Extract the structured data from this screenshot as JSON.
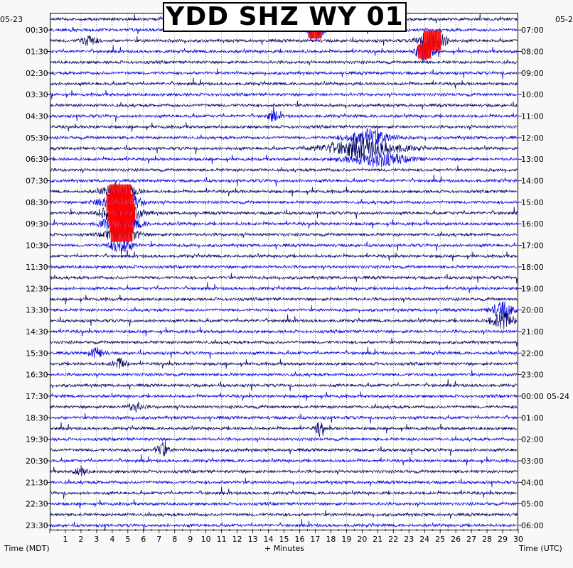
{
  "title": "YDD SHZ WY 01",
  "dates": {
    "start_local": "05-23",
    "start_utc": "05-2",
    "rollover_utc": "05-24"
  },
  "axis_labels": {
    "left": "Time (MDT)",
    "bottom": "+ Minutes",
    "right": "Time (UTC)"
  },
  "colors": {
    "trace_dark": "#000060",
    "trace_blue": "#0000dd",
    "clip": "#ff0000",
    "background": "#ffffff"
  },
  "chart_data": {
    "type": "line",
    "title": "YDD SHZ WY 01",
    "xlabel": "+ Minutes",
    "ylabel_left": "Time (MDT)",
    "ylabel_right": "Time (UTC)",
    "xlim": [
      0,
      30
    ],
    "x_ticks": [
      "1",
      "2",
      "3",
      "4",
      "5",
      "6",
      "7",
      "8",
      "9",
      "10",
      "11",
      "12",
      "13",
      "14",
      "15",
      "16",
      "17",
      "18",
      "19",
      "20",
      "21",
      "22",
      "23",
      "24",
      "25",
      "26",
      "27",
      "28",
      "29",
      "30"
    ],
    "rows_count": 48,
    "left_labels": [
      "00:30",
      "01:30",
      "02:30",
      "03:30",
      "04:30",
      "05:30",
      "06:30",
      "07:30",
      "08:30",
      "09:30",
      "10:30",
      "11:30",
      "12:30",
      "13:30",
      "14:30",
      "15:30",
      "16:30",
      "17:30",
      "18:30",
      "19:30",
      "20:30",
      "21:30",
      "22:30",
      "23:30"
    ],
    "right_labels": [
      "07:00",
      "08:00",
      "09:00",
      "10:00",
      "11:00",
      "12:00",
      "13:00",
      "14:00",
      "15:00",
      "16:00",
      "17:00",
      "18:00",
      "19:00",
      "20:00",
      "21:00",
      "22:00",
      "23:00",
      "00:00",
      "01:00",
      "02:00",
      "03:00",
      "04:00",
      "05:00",
      "06:00"
    ],
    "events": [
      {
        "row": 1,
        "minute": 17.0,
        "width": 1.2,
        "amp": 3.0,
        "clip": true
      },
      {
        "row": 2,
        "minute": 2.5,
        "width": 1.0,
        "amp": 1.3
      },
      {
        "row": 2,
        "minute": 24.5,
        "width": 1.6,
        "amp": 3.5,
        "clip": true
      },
      {
        "row": 3,
        "minute": 24.0,
        "width": 1.2,
        "amp": 2.5,
        "clip": true
      },
      {
        "row": 9,
        "minute": 14.3,
        "width": 0.8,
        "amp": 1.2
      },
      {
        "row": 11,
        "minute": 20.5,
        "width": 3.0,
        "amp": 1.8
      },
      {
        "row": 12,
        "minute": 20.0,
        "width": 5.0,
        "amp": 2.2
      },
      {
        "row": 13,
        "minute": 21.0,
        "width": 4.0,
        "amp": 1.6
      },
      {
        "row": 16,
        "minute": 4.5,
        "width": 2.0,
        "amp": 2.5,
        "clip": true
      },
      {
        "row": 17,
        "minute": 4.5,
        "width": 2.5,
        "amp": 3.0,
        "clip": true
      },
      {
        "row": 18,
        "minute": 4.6,
        "width": 2.5,
        "amp": 3.0,
        "clip": true
      },
      {
        "row": 19,
        "minute": 4.6,
        "width": 2.2,
        "amp": 3.0,
        "clip": true
      },
      {
        "row": 20,
        "minute": 4.6,
        "width": 2.0,
        "amp": 2.5,
        "clip": true
      },
      {
        "row": 21,
        "minute": 4.6,
        "width": 1.5,
        "amp": 2.0
      },
      {
        "row": 27,
        "minute": 29.0,
        "width": 1.5,
        "amp": 2.0
      },
      {
        "row": 28,
        "minute": 29.0,
        "width": 1.5,
        "amp": 2.2
      },
      {
        "row": 31,
        "minute": 3.0,
        "width": 1.0,
        "amp": 1.2
      },
      {
        "row": 32,
        "minute": 4.5,
        "width": 1.0,
        "amp": 1.2
      },
      {
        "row": 36,
        "minute": 5.5,
        "width": 1.0,
        "amp": 1.0
      },
      {
        "row": 38,
        "minute": 17.3,
        "width": 0.6,
        "amp": 1.5
      },
      {
        "row": 40,
        "minute": 7.2,
        "width": 0.8,
        "amp": 1.6
      },
      {
        "row": 42,
        "minute": 2.0,
        "width": 0.8,
        "amp": 1.2
      }
    ]
  }
}
